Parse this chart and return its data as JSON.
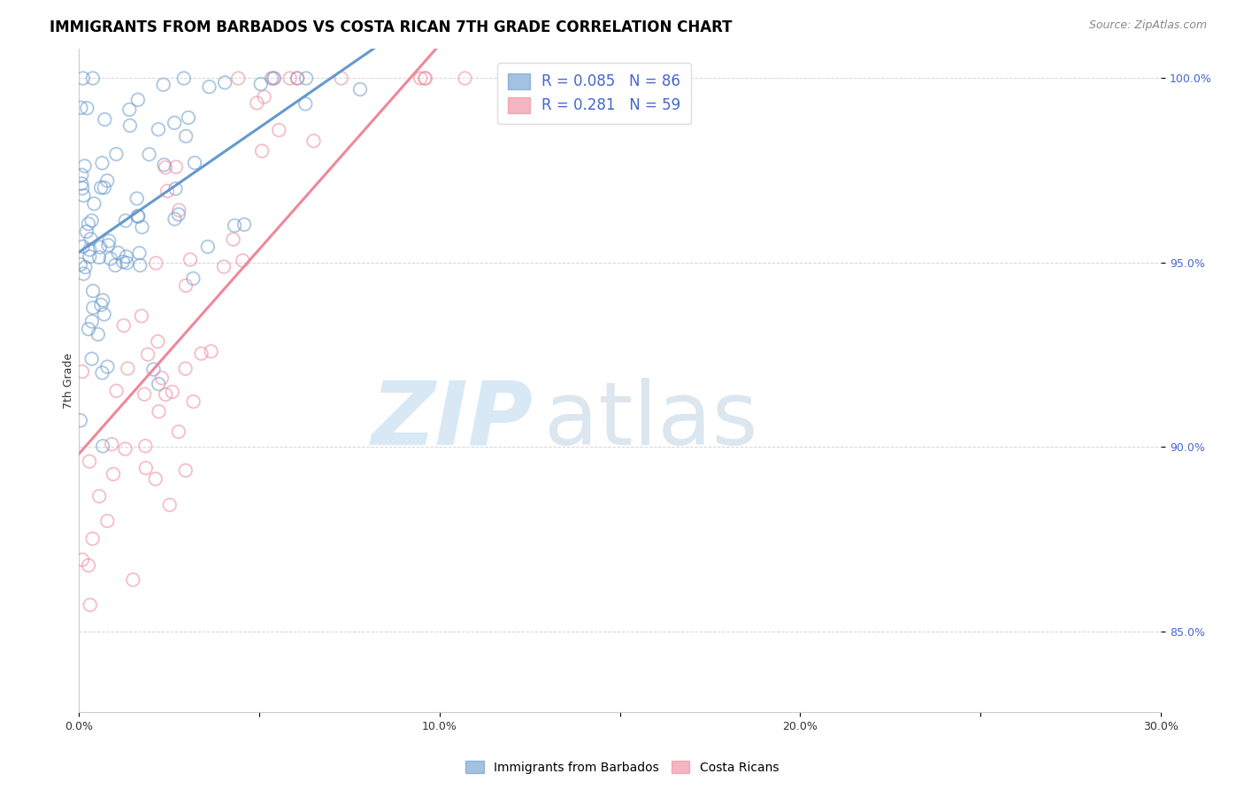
{
  "title": "IMMIGRANTS FROM BARBADOS VS COSTA RICAN 7TH GRADE CORRELATION CHART",
  "source_text": "Source: ZipAtlas.com",
  "ylabel": "7th Grade",
  "xlim": [
    0.0,
    0.3
  ],
  "ylim": [
    0.828,
    1.008
  ],
  "xtick_labels": [
    "0.0%",
    "",
    "10.0%",
    "",
    "20.0%",
    "",
    "30.0%"
  ],
  "xtick_positions": [
    0.0,
    0.05,
    0.1,
    0.15,
    0.2,
    0.25,
    0.3
  ],
  "ytick_labels": [
    "85.0%",
    "90.0%",
    "95.0%",
    "100.0%"
  ],
  "ytick_positions": [
    0.85,
    0.9,
    0.95,
    1.0
  ],
  "blue_color": "#6699cc",
  "pink_color": "#ee8899",
  "blue_R": 0.085,
  "blue_N": 86,
  "pink_R": 0.281,
  "pink_N": 59,
  "title_fontsize": 12,
  "source_fontsize": 9,
  "axis_label_fontsize": 9,
  "tick_fontsize": 9,
  "legend_fontsize": 12,
  "watermark_zip_color": "#c8dff0",
  "watermark_atlas_color": "#b8cfe0"
}
